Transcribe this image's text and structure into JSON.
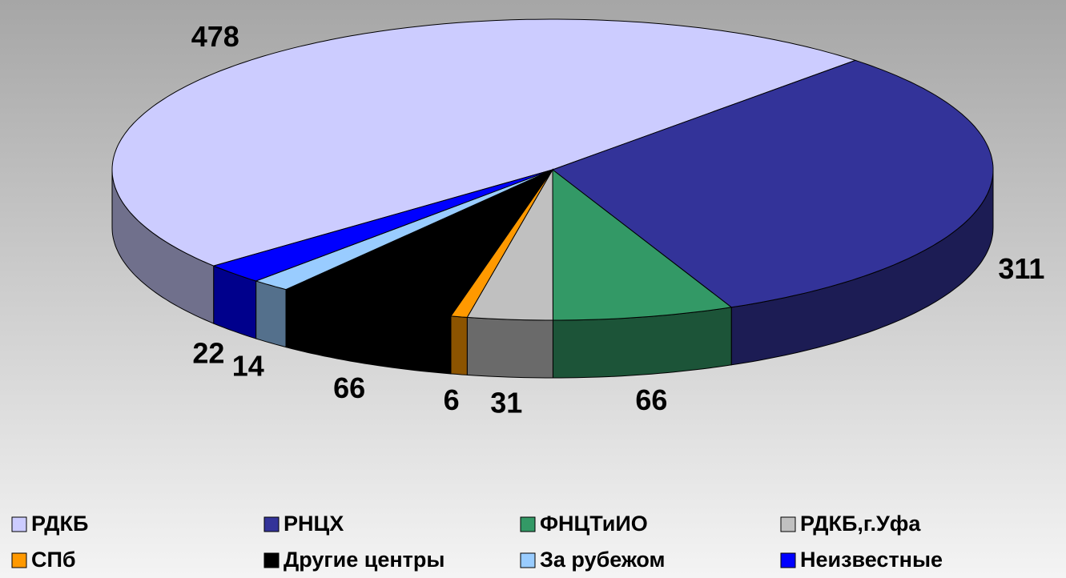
{
  "chart_data": {
    "type": "pie",
    "three_d": true,
    "categories": [
      "РДКБ",
      "РНЦХ",
      "ФНЦТиИО",
      "РДКБ,г.Уфа",
      "СПб",
      "Другие центры",
      "За рубежом",
      "Неизвестные"
    ],
    "values": [
      478,
      311,
      66,
      31,
      6,
      66,
      14,
      22
    ],
    "colors": [
      "#ccccff",
      "#333399",
      "#339966",
      "#c0c0c0",
      "#ff9900",
      "#000000",
      "#99ccff",
      "#0000ff"
    ],
    "legend": "bottom"
  }
}
